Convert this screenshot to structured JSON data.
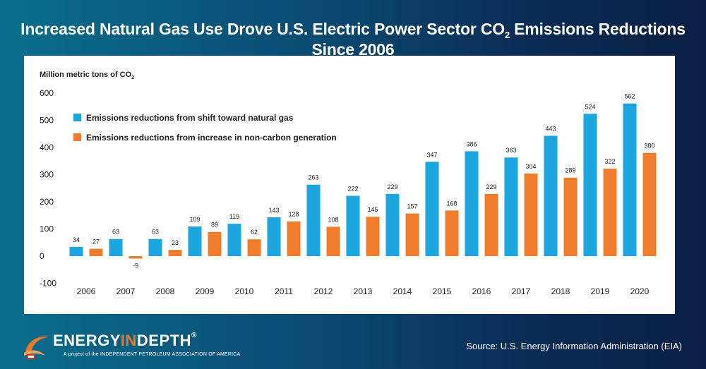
{
  "page": {
    "title_main": "Increased Natural Gas Use Drove U.S. Electric Power Sector CO",
    "title_sub": "2",
    "title_tail": " Emissions Reductions Since 2006",
    "source": "Source: U.S. Energy Information Administration (EIA)",
    "logo": {
      "word_a": "ENERGY",
      "word_b": "IN",
      "word_c": "DEPTH",
      "mark": "®",
      "tagline": "A project of the INDEPENDENT PETROLEUM ASSOCIATION OF AMERICA"
    }
  },
  "chart_data": {
    "type": "bar",
    "ylabel": "Million metric tons of CO",
    "ylabel_sub": "2",
    "ylim": [
      -100,
      600
    ],
    "yticks": [
      600,
      500,
      400,
      300,
      200,
      100,
      0,
      -100
    ],
    "grid": false,
    "legend_position": "top-left",
    "categories": [
      "2006",
      "2007",
      "2008",
      "2009",
      "2010",
      "2011",
      "2012",
      "2013",
      "2014",
      "2015",
      "2016",
      "2017",
      "2018",
      "2019",
      "2020"
    ],
    "series": [
      {
        "name": "Emissions reductions from shift toward natural gas",
        "color": "#1ba6e0",
        "values": [
          34,
          63,
          63,
          109,
          119,
          143,
          263,
          222,
          229,
          347,
          386,
          363,
          443,
          524,
          562
        ]
      },
      {
        "name": "Emissions reductions from increase in non-carbon generation",
        "color": "#f07d2b",
        "values": [
          27,
          -9,
          23,
          89,
          62,
          128,
          108,
          145,
          157,
          168,
          229,
          304,
          289,
          322,
          380
        ]
      }
    ]
  }
}
